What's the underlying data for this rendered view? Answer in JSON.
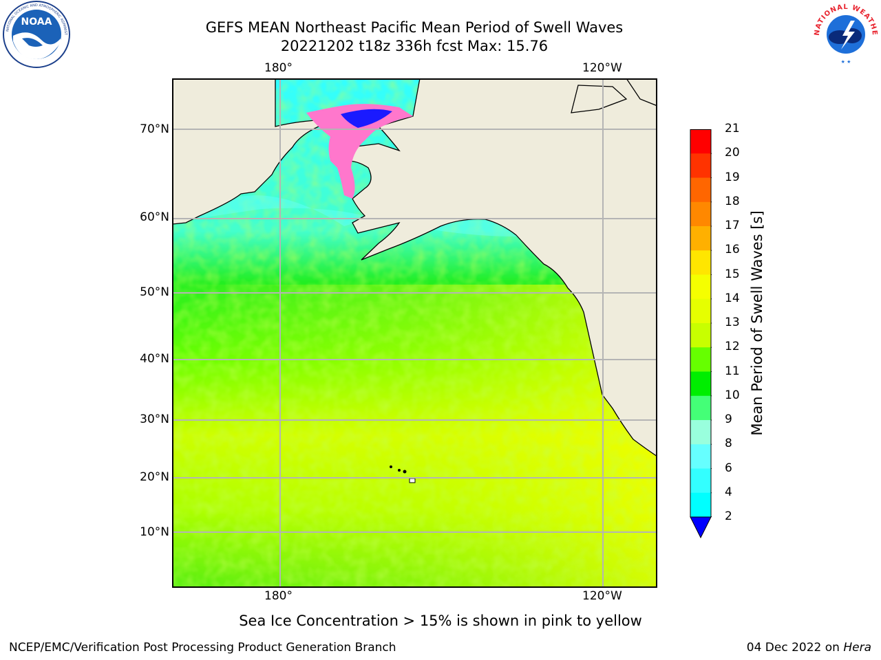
{
  "title": {
    "line1": "GEFS MEAN Northeast Pacific Mean Period of Swell Waves",
    "line2": "20221202 t18z 336h fcst   Max: 15.76"
  },
  "logos": {
    "left": {
      "icon": "noaa-logo",
      "text": "NOAA",
      "ring_text": "NATIONAL OCEANIC AND ATMOSPHERIC ADMINISTRATION · U.S. DEPARTMENT OF COMMERCE"
    },
    "right": {
      "icon": "nws-logo",
      "ring_text": "NATIONAL WEATHER SERVICE"
    }
  },
  "map": {
    "top_lon_labels": [
      "180°",
      "120°W"
    ],
    "bottom_lon_labels": [
      "180°",
      "120°W"
    ],
    "lat_labels": [
      "70°N",
      "60°N",
      "50°N",
      "40°N",
      "30°N",
      "20°N",
      "10°N"
    ],
    "colors": {
      "land": "#efecdc",
      "grid": "#b4b4b4",
      "ice_pink": "#ff77cc",
      "ice_blue": "#1a1aff"
    }
  },
  "colorbar": {
    "label": "Mean Period of Swell Waves [s]",
    "ticks": [
      "21",
      "20",
      "19",
      "18",
      "17",
      "16",
      "15",
      "14",
      "13",
      "12",
      "11",
      "10",
      "9",
      "8",
      "6",
      "4",
      "2"
    ],
    "colors_top_to_bottom": [
      "#ff0000",
      "#ff3300",
      "#ff6600",
      "#ff8800",
      "#ffb000",
      "#ffe600",
      "#f5ff00",
      "#e6ff00",
      "#c8ff00",
      "#66ff00",
      "#00ee00",
      "#44ff77",
      "#99ffdd",
      "#66ffff",
      "#33ffff",
      "#00ffff",
      "#00aaff",
      "#0066ff"
    ],
    "extend_color": "#0000ff"
  },
  "note": "Sea Ice Concentration > 15% is shown in pink to yellow",
  "footer": {
    "left": "NCEP/EMC/Verification Post Processing Product Generation Branch",
    "date": "04 Dec 2022 on ",
    "machine": "Hera"
  }
}
